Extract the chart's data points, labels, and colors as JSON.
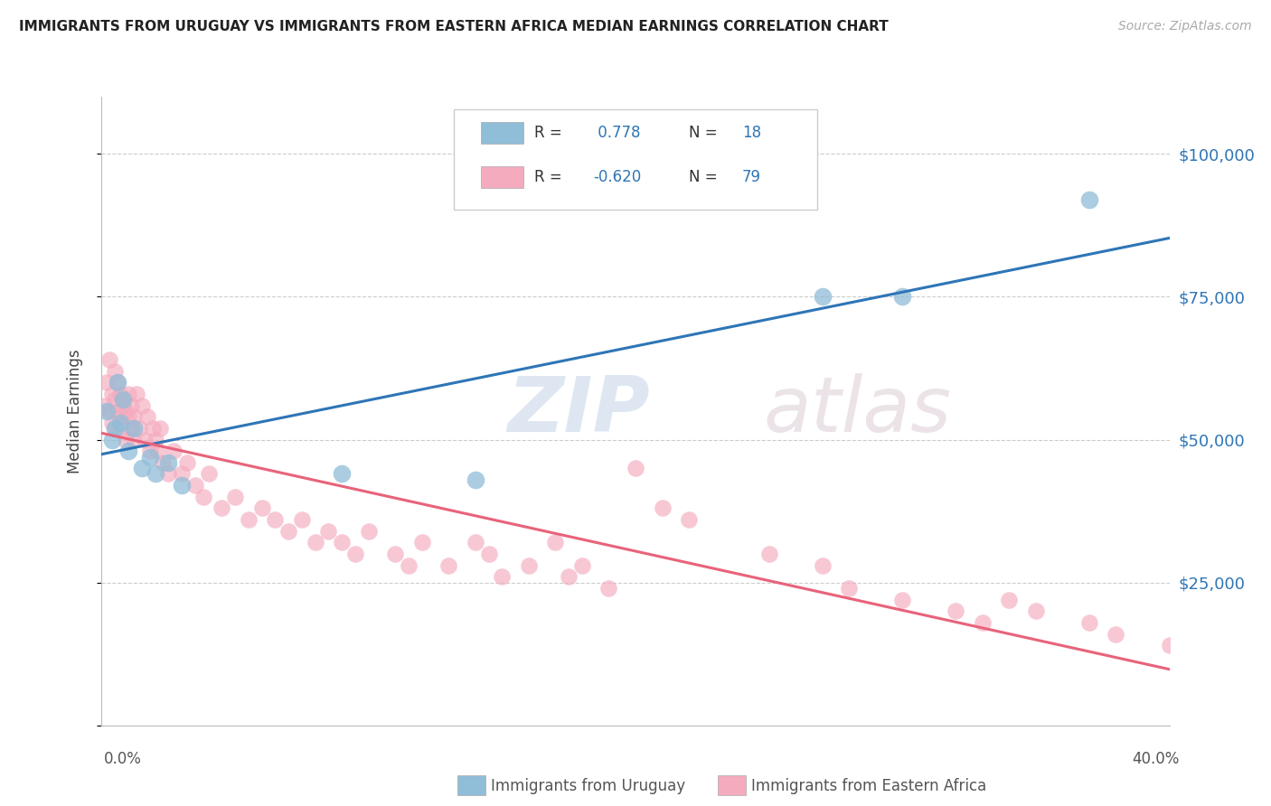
{
  "title": "IMMIGRANTS FROM URUGUAY VS IMMIGRANTS FROM EASTERN AFRICA MEDIAN EARNINGS CORRELATION CHART",
  "source": "Source: ZipAtlas.com",
  "ylabel": "Median Earnings",
  "xmin": 0.0,
  "xmax": 40.0,
  "ymin": 0,
  "ymax": 110000,
  "yticks": [
    0,
    25000,
    50000,
    75000,
    100000
  ],
  "ytick_labels": [
    "",
    "$25,000",
    "$50,000",
    "$75,000",
    "$100,000"
  ],
  "color_blue": "#90BDD8",
  "color_pink": "#F4ABBE",
  "color_blue_line": "#2E75B6",
  "color_pink_line": "#E8637A",
  "watermark_zip": "ZIP",
  "watermark_atlas": "atlas",
  "footer_label1": "Immigrants from Uruguay",
  "footer_label2": "Immigrants from Eastern Africa",
  "uruguay_x": [
    0.2,
    0.4,
    0.5,
    0.6,
    0.7,
    0.8,
    1.0,
    1.2,
    1.5,
    1.8,
    2.0,
    2.5,
    3.0,
    9.0,
    14.0,
    27.0,
    30.0,
    37.0
  ],
  "uruguay_y": [
    55000,
    50000,
    52000,
    60000,
    53000,
    57000,
    48000,
    52000,
    45000,
    47000,
    44000,
    46000,
    42000,
    44000,
    43000,
    75000,
    75000,
    92000
  ],
  "eastern_africa_x": [
    0.1,
    0.2,
    0.3,
    0.3,
    0.4,
    0.4,
    0.5,
    0.5,
    0.5,
    0.6,
    0.6,
    0.7,
    0.7,
    0.8,
    0.8,
    0.9,
    0.9,
    1.0,
    1.0,
    1.1,
    1.1,
    1.2,
    1.2,
    1.3,
    1.4,
    1.5,
    1.6,
    1.7,
    1.8,
    1.9,
    2.0,
    2.1,
    2.2,
    2.3,
    2.5,
    2.7,
    3.0,
    3.2,
    3.5,
    3.8,
    4.0,
    4.5,
    5.0,
    5.5,
    6.0,
    6.5,
    7.0,
    7.5,
    8.0,
    8.5,
    9.0,
    9.5,
    10.0,
    11.0,
    11.5,
    12.0,
    13.0,
    14.0,
    14.5,
    15.0,
    16.0,
    17.0,
    17.5,
    18.0,
    19.0,
    20.0,
    21.0,
    22.0,
    25.0,
    27.0,
    28.0,
    30.0,
    32.0,
    33.0,
    34.0,
    35.0,
    37.0,
    38.0,
    40.0
  ],
  "eastern_africa_y": [
    56000,
    60000,
    64000,
    55000,
    58000,
    53000,
    62000,
    57000,
    52000,
    55000,
    60000,
    54000,
    58000,
    56000,
    52000,
    55000,
    50000,
    54000,
    58000,
    52000,
    56000,
    50000,
    54000,
    58000,
    52000,
    56000,
    50000,
    54000,
    48000,
    52000,
    50000,
    48000,
    52000,
    46000,
    44000,
    48000,
    44000,
    46000,
    42000,
    40000,
    44000,
    38000,
    40000,
    36000,
    38000,
    36000,
    34000,
    36000,
    32000,
    34000,
    32000,
    30000,
    34000,
    30000,
    28000,
    32000,
    28000,
    32000,
    30000,
    26000,
    28000,
    32000,
    26000,
    28000,
    24000,
    45000,
    38000,
    36000,
    30000,
    28000,
    24000,
    22000,
    20000,
    18000,
    22000,
    20000,
    18000,
    16000,
    14000
  ]
}
